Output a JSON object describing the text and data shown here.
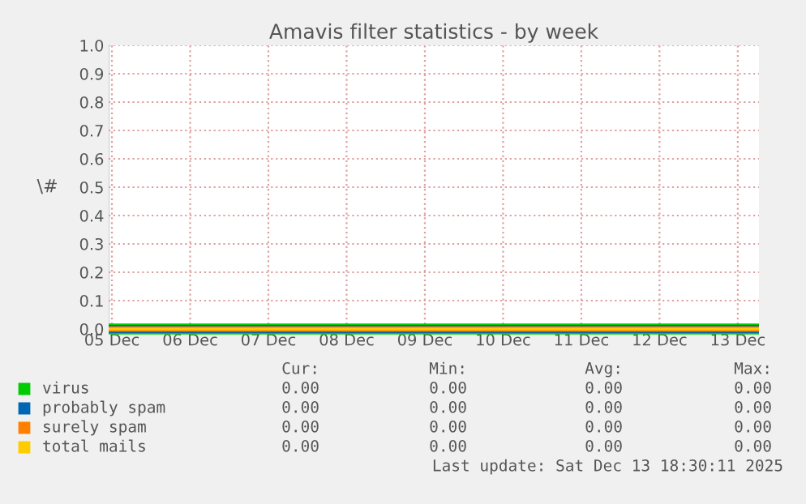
{
  "chart_data": {
    "type": "line",
    "title": "Amavis filter statistics - by week",
    "ylabel": "\\#",
    "xlim": [
      "2025-12-05T11:00",
      "2025-12-13T18:30"
    ],
    "xticks": [
      {
        "value": "2025-12-05T12:00",
        "label": "05 Dec"
      },
      {
        "value": "2025-12-06T12:00",
        "label": "06 Dec"
      },
      {
        "value": "2025-12-07T12:00",
        "label": "07 Dec"
      },
      {
        "value": "2025-12-08T12:00",
        "label": "08 Dec"
      },
      {
        "value": "2025-12-09T12:00",
        "label": "09 Dec"
      },
      {
        "value": "2025-12-10T12:00",
        "label": "10 Dec"
      },
      {
        "value": "2025-12-11T12:00",
        "label": "11 Dec"
      },
      {
        "value": "2025-12-12T12:00",
        "label": "12 Dec"
      },
      {
        "value": "2025-12-13T12:00",
        "label": "13 Dec"
      }
    ],
    "ylim": [
      0,
      1
    ],
    "yticks": [
      {
        "value": 0,
        "label": "0.0"
      },
      {
        "value": 0.1,
        "label": "0.1"
      },
      {
        "value": 0.2,
        "label": "0.2"
      },
      {
        "value": 0.3,
        "label": "0.3"
      },
      {
        "value": 0.4,
        "label": "0.4"
      },
      {
        "value": 0.5,
        "label": "0.5"
      },
      {
        "value": 0.6,
        "label": "0.6"
      },
      {
        "value": 0.7,
        "label": "0.7"
      },
      {
        "value": 0.8,
        "label": "0.8"
      },
      {
        "value": 0.9,
        "label": "0.9"
      },
      {
        "value": 1,
        "label": "1.0"
      }
    ],
    "x": [
      "2025-12-05T11:00",
      "2025-12-13T18:30"
    ],
    "series": [
      {
        "name": "virus",
        "color": "#00cc00",
        "values": [
          0,
          0
        ]
      },
      {
        "name": "probably spam",
        "color": "#0066b3",
        "values": [
          0,
          0
        ]
      },
      {
        "name": "surely spam",
        "color": "#ff8000",
        "values": [
          0,
          0
        ]
      },
      {
        "name": "total mails",
        "color": "#ffcc00",
        "values": [
          0,
          0
        ]
      }
    ],
    "grid": true,
    "legend": "bottom",
    "marker": "none",
    "line_style": "solid",
    "annotations": [
      "Cur:",
      "Min:",
      "Avg:",
      "Max:",
      "0.00",
      "0.00",
      "0.00",
      "0.00",
      "0.00",
      "0.00",
      "0.00",
      "0.00",
      "0.00",
      "0.00",
      "0.00",
      "0.00",
      "0.00",
      "0.00",
      "0.00",
      "0.00",
      "Last update: Sat Dec 13 18:30:11 2025"
    ]
  }
}
